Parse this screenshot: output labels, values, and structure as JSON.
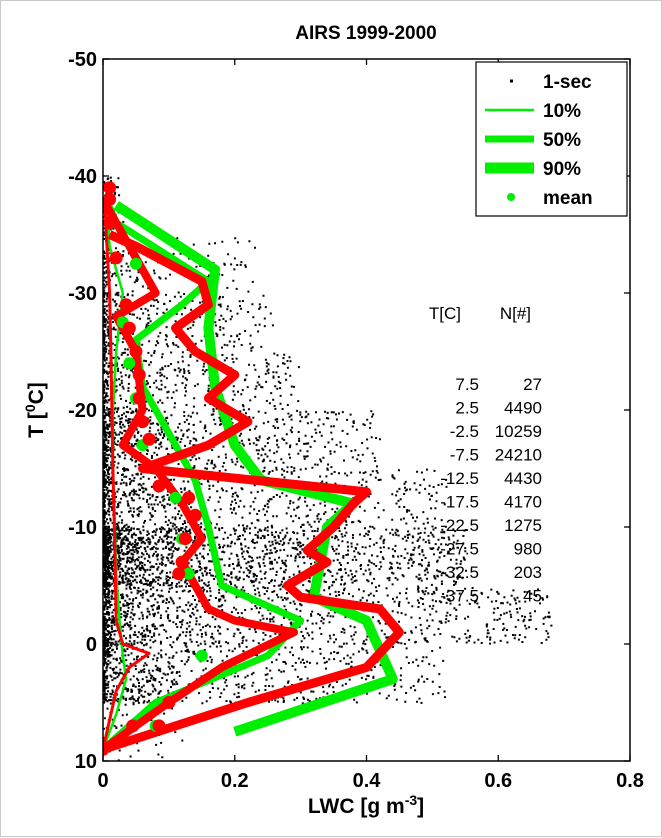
{
  "chart_data": {
    "type": "line",
    "title": "AIRS 1999-2000",
    "xlabel": "LWC [g m",
    "xlabel_sup": "-3",
    "xlabel_end": "]",
    "ylabel": "T [",
    "ylabel_sup": "0",
    "ylabel_end": "C]",
    "xlim": [
      0,
      0.8
    ],
    "ylim": [
      10,
      -50
    ],
    "y_reversed": true,
    "xticks": [
      0,
      0.2,
      0.4,
      0.6,
      0.8
    ],
    "xtick_labels": [
      "0",
      "0.2",
      "0.4",
      "0.6",
      "0.8"
    ],
    "yticks": [
      10,
      0,
      -10,
      -20,
      -30,
      -40,
      -50
    ],
    "ytick_labels": [
      "10",
      "0",
      "-10",
      "-20",
      "-30",
      "-40",
      "-50"
    ],
    "grid": false,
    "legend_position": "top-right",
    "legend": [
      {
        "label": "1-sec",
        "style": "dot",
        "color": "#000000"
      },
      {
        "label": "10%",
        "style": "thin",
        "color": "#00ee00"
      },
      {
        "label": "50%",
        "style": "medium",
        "color": "#00ee00"
      },
      {
        "label": "90%",
        "style": "thick",
        "color": "#00ee00"
      },
      {
        "label": "mean",
        "style": "marker",
        "color": "#00ee00"
      }
    ],
    "series": [
      {
        "name": "10%",
        "color": "#00ee00",
        "kind": "green-10",
        "points": [
          [
            0.0,
            9
          ],
          [
            0.02,
            6
          ],
          [
            0.035,
            3
          ],
          [
            0.03,
            1
          ],
          [
            0.025,
            -2
          ],
          [
            0.02,
            -6
          ],
          [
            0.018,
            -10
          ],
          [
            0.015,
            -15
          ],
          [
            0.015,
            -20
          ],
          [
            0.02,
            -25
          ],
          [
            0.03,
            -30
          ],
          [
            0.01,
            -34
          ],
          [
            0.005,
            -38
          ]
        ]
      },
      {
        "name": "50%",
        "color": "#00ee00",
        "kind": "green-50",
        "points": [
          [
            0.0,
            9
          ],
          [
            0.08,
            5
          ],
          [
            0.25,
            1
          ],
          [
            0.3,
            -2
          ],
          [
            0.18,
            -5
          ],
          [
            0.16,
            -10
          ],
          [
            0.14,
            -14
          ],
          [
            0.1,
            -18
          ],
          [
            0.06,
            -22
          ],
          [
            0.05,
            -26
          ],
          [
            0.12,
            -29
          ],
          [
            0.16,
            -31
          ],
          [
            0.02,
            -36
          ],
          [
            0.005,
            -38
          ]
        ]
      },
      {
        "name": "90%",
        "color": "#00ee00",
        "kind": "green-90",
        "points": [
          [
            0.2,
            7.5
          ],
          [
            0.44,
            3
          ],
          [
            0.4,
            -2
          ],
          [
            0.32,
            -4
          ],
          [
            0.34,
            -10
          ],
          [
            0.38,
            -12
          ],
          [
            0.24,
            -14
          ],
          [
            0.2,
            -17
          ],
          [
            0.17,
            -22
          ],
          [
            0.16,
            -27
          ],
          [
            0.17,
            -32
          ],
          [
            0.02,
            -37.5
          ]
        ]
      },
      {
        "name": "10% (red)",
        "color": "#ff0000",
        "kind": "red-10",
        "points": [
          [
            0.0,
            9
          ],
          [
            0.012,
            6
          ],
          [
            0.02,
            4
          ],
          [
            0.04,
            2
          ],
          [
            0.07,
            0.8
          ],
          [
            0.03,
            0
          ],
          [
            0.02,
            -2
          ],
          [
            0.018,
            -8
          ],
          [
            0.015,
            -15
          ],
          [
            0.012,
            -25
          ],
          [
            0.01,
            -30
          ],
          [
            0.005,
            -35
          ],
          [
            0.003,
            -38
          ]
        ]
      },
      {
        "name": "50% (red)",
        "color": "#ff0000",
        "kind": "red-50",
        "points": [
          [
            0.0,
            9
          ],
          [
            0.1,
            5
          ],
          [
            0.18,
            2
          ],
          [
            0.29,
            -1
          ],
          [
            0.2,
            -2
          ],
          [
            0.16,
            -3
          ],
          [
            0.12,
            -7
          ],
          [
            0.15,
            -9
          ],
          [
            0.12,
            -12
          ],
          [
            0.08,
            -15
          ],
          [
            0.03,
            -17
          ],
          [
            0.06,
            -20
          ],
          [
            0.05,
            -25
          ],
          [
            0.02,
            -28
          ],
          [
            0.08,
            -30
          ],
          [
            0.0,
            -38
          ]
        ]
      },
      {
        "name": "90% (red)",
        "color": "#ff0000",
        "kind": "red-90",
        "points": [
          [
            0.0,
            9
          ],
          [
            0.22,
            5
          ],
          [
            0.4,
            2
          ],
          [
            0.45,
            -1
          ],
          [
            0.42,
            -3
          ],
          [
            0.3,
            -4
          ],
          [
            0.28,
            -5
          ],
          [
            0.34,
            -7
          ],
          [
            0.31,
            -8
          ],
          [
            0.35,
            -10
          ],
          [
            0.38,
            -12
          ],
          [
            0.4,
            -13
          ],
          [
            0.06,
            -15
          ],
          [
            0.16,
            -17
          ],
          [
            0.22,
            -19
          ],
          [
            0.16,
            -21
          ],
          [
            0.2,
            -23
          ],
          [
            0.14,
            -25
          ],
          [
            0.11,
            -27
          ],
          [
            0.16,
            -29
          ],
          [
            0.15,
            -31
          ],
          [
            0.05,
            -34
          ],
          [
            0.01,
            -35
          ]
        ]
      }
    ],
    "mean_green": [
      [
        0.08,
        7
      ],
      [
        0.15,
        1
      ],
      [
        0.13,
        -6
      ],
      [
        0.12,
        -9
      ],
      [
        0.11,
        -12.5
      ],
      [
        0.06,
        -17
      ],
      [
        0.05,
        -21
      ],
      [
        0.04,
        -24
      ],
      [
        0.03,
        -27.5
      ],
      [
        0.05,
        -32.5
      ]
    ],
    "mean_red": [
      [
        0.0,
        9
      ],
      [
        0.045,
        7
      ],
      [
        0.085,
        7
      ],
      [
        0.1,
        5
      ],
      [
        0.115,
        -6
      ],
      [
        0.12,
        -7
      ],
      [
        0.125,
        -9
      ],
      [
        0.14,
        -11
      ],
      [
        0.13,
        -12.5
      ],
      [
        0.085,
        -13.5
      ],
      [
        0.07,
        -17.5
      ],
      [
        0.06,
        -19
      ],
      [
        0.055,
        -21
      ],
      [
        0.055,
        -23
      ],
      [
        0.05,
        -25
      ],
      [
        0.04,
        -27
      ],
      [
        0.035,
        -29
      ],
      [
        0.02,
        -33
      ],
      [
        0.01,
        -36
      ],
      [
        0.01,
        -38
      ],
      [
        0.01,
        -39
      ]
    ],
    "table": {
      "header_t": "T[C]",
      "header_n": "N[#]",
      "rows": [
        {
          "t": "7.5",
          "n": "27"
        },
        {
          "t": "2.5",
          "n": "4490"
        },
        {
          "t": "-2.5",
          "n": "10259"
        },
        {
          "t": "-7.5",
          "n": "24210"
        },
        {
          "t": "-12.5",
          "n": "4430"
        },
        {
          "t": "-17.5",
          "n": "4170"
        },
        {
          "t": "-22.5",
          "n": "1275"
        },
        {
          "t": "-27.5",
          "n": "980"
        },
        {
          "t": "-32.5",
          "n": "203"
        },
        {
          "t": "-37.5",
          "n": "45"
        }
      ]
    },
    "scatter_density": [
      {
        "t": 7.5,
        "n": 27,
        "max": 0.12
      },
      {
        "t": 2.5,
        "n": 4490,
        "max": 0.52
      },
      {
        "t": -2.5,
        "n": 10259,
        "max": 0.68
      },
      {
        "t": -7.5,
        "n": 24210,
        "max": 0.55
      },
      {
        "t": -12.5,
        "n": 4430,
        "max": 0.52
      },
      {
        "t": -17.5,
        "n": 4170,
        "max": 0.42
      },
      {
        "t": -22.5,
        "n": 1275,
        "max": 0.3
      },
      {
        "t": -27.5,
        "n": 980,
        "max": 0.26
      },
      {
        "t": -32.5,
        "n": 203,
        "max": 0.23
      },
      {
        "t": -37.5,
        "n": 45,
        "max": 0.03
      }
    ]
  }
}
